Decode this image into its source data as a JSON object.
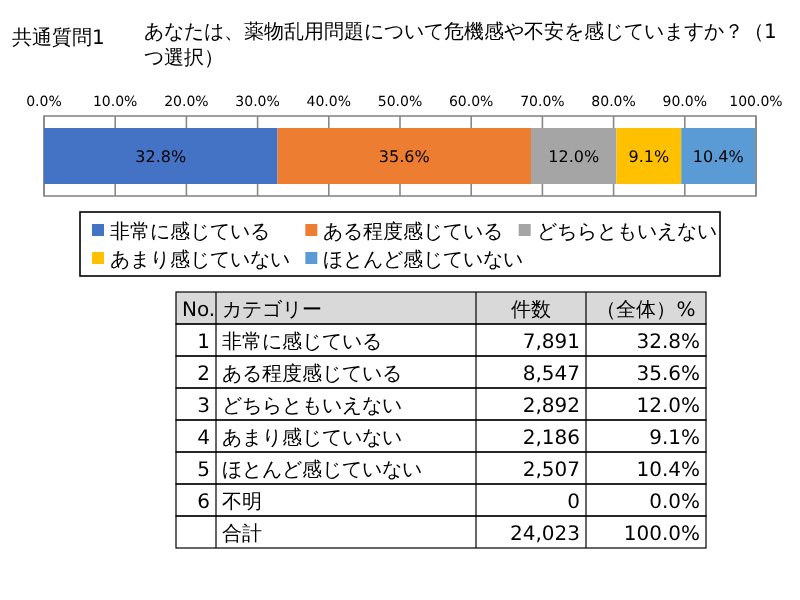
{
  "chart_data": {
    "type": "bar",
    "orientation": "horizontal",
    "stacked": true,
    "title": "共通質問1",
    "subtitle": "あなたは、薬物乱用問題について危機感や不安を感じていますか？（1つ選択）",
    "categories": [
      null
    ],
    "series": [
      {
        "name": "非常に感じている",
        "color": "#4472c4",
        "values": [
          32.8
        ],
        "value_labels": [
          "32.8%"
        ]
      },
      {
        "name": "ある程度感じている",
        "color": "#ed7d31",
        "values": [
          35.6
        ],
        "value_labels": [
          "35.6%"
        ]
      },
      {
        "name": "どちらともいえない",
        "color": "#a5a5a5",
        "values": [
          12.0
        ],
        "value_labels": [
          "12.0%"
        ]
      },
      {
        "name": "あまり感じていない",
        "color": "#ffc000",
        "values": [
          9.1
        ],
        "value_labels": [
          "9.1%"
        ]
      },
      {
        "name": "ほとんど感じていない",
        "color": "#5b9bd5",
        "values": [
          10.4
        ],
        "value_labels": [
          "10.4%"
        ]
      }
    ],
    "xlim": [
      0,
      100
    ],
    "xticks": [
      {
        "value": 0,
        "label": "0.0%"
      },
      {
        "value": 10,
        "label": "10.0%"
      },
      {
        "value": 20,
        "label": "20.0%"
      },
      {
        "value": 30,
        "label": "30.0%"
      },
      {
        "value": 40,
        "label": "40.0%"
      },
      {
        "value": 50,
        "label": "50.0%"
      },
      {
        "value": 60,
        "label": "60.0%"
      },
      {
        "value": 70,
        "label": "70.0%"
      },
      {
        "value": 80,
        "label": "80.0%"
      },
      {
        "value": 90,
        "label": "90.0%"
      },
      {
        "value": 100,
        "label": "100.0%"
      }
    ],
    "grid": "x",
    "legend": "bottom",
    "annotations": [
      "No.",
      "カテゴリー",
      "件数",
      "（全体）%",
      "1",
      "非常に感じている",
      "7,891",
      "32.8%",
      "2",
      "ある程度感じている",
      "8,547",
      "35.6%",
      "3",
      "どちらともいえない",
      "2,892",
      "12.0%",
      "4",
      "あまり感じていない",
      "2,186",
      "9.1%",
      "5",
      "ほとんど感じていない",
      "2,507",
      "10.4%",
      "6",
      "不明",
      "0",
      "0.0%",
      "合計",
      "24,023",
      "100.0%"
    ]
  }
}
